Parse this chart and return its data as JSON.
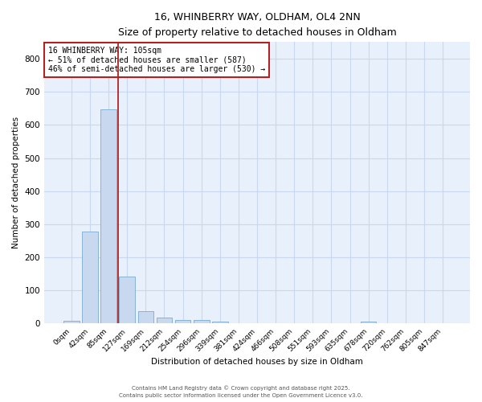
{
  "title1": "16, WHINBERRY WAY, OLDHAM, OL4 2NN",
  "title2": "Size of property relative to detached houses in Oldham",
  "xlabel": "Distribution of detached houses by size in Oldham",
  "ylabel": "Number of detached properties",
  "bin_labels": [
    "0sqm",
    "42sqm",
    "85sqm",
    "127sqm",
    "169sqm",
    "212sqm",
    "254sqm",
    "296sqm",
    "339sqm",
    "381sqm",
    "424sqm",
    "466sqm",
    "508sqm",
    "551sqm",
    "593sqm",
    "635sqm",
    "678sqm",
    "720sqm",
    "762sqm",
    "805sqm",
    "847sqm"
  ],
  "bar_values": [
    8,
    278,
    648,
    141,
    38,
    18,
    11,
    10,
    6,
    0,
    0,
    0,
    0,
    0,
    0,
    0,
    5,
    0,
    0,
    0,
    0
  ],
  "bar_color": "#c8d8ee",
  "bar_edge_color": "#7aabcf",
  "grid_color": "#c8d8f0",
  "background_color": "#e8f0fb",
  "vline_x": 2.5,
  "vline_color": "#b22222",
  "annotation_text": "16 WHINBERRY WAY: 105sqm\n← 51% of detached houses are smaller (587)\n46% of semi-detached houses are larger (530) →",
  "annotation_box_color": "#b22222",
  "ylim": [
    0,
    850
  ],
  "yticks": [
    0,
    100,
    200,
    300,
    400,
    500,
    600,
    700,
    800
  ],
  "footnote1": "Contains HM Land Registry data © Crown copyright and database right 2025.",
  "footnote2": "Contains public sector information licensed under the Open Government Licence v3.0."
}
